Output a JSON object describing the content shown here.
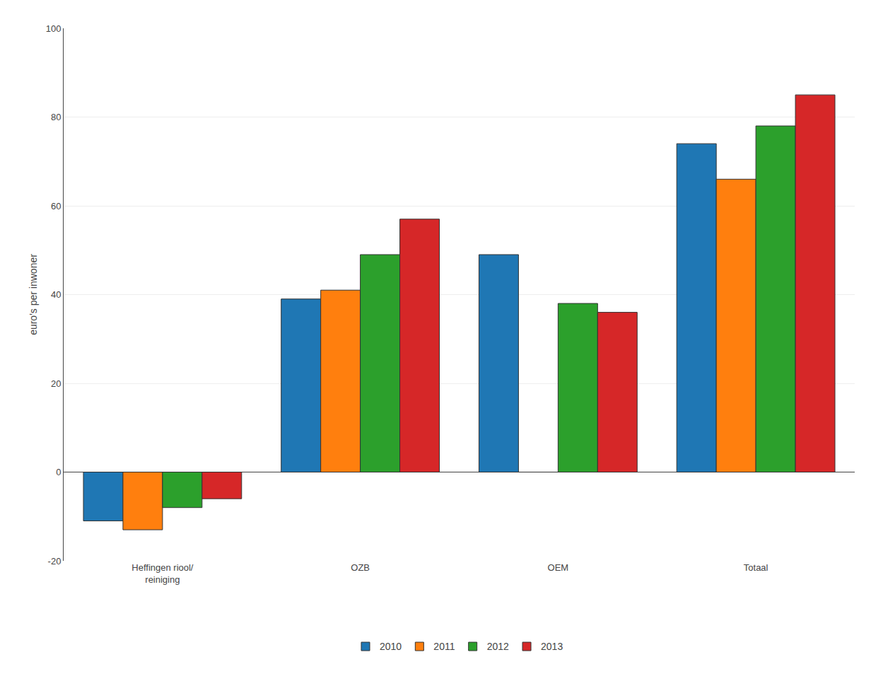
{
  "chart_data": {
    "type": "bar",
    "ylabel": "euro's per inwoner",
    "categories": [
      "Heffingen riool/\nreiniging",
      "OZB",
      "OEM",
      "Totaal"
    ],
    "series": [
      {
        "name": "2010",
        "values": [
          -11,
          39,
          49,
          74
        ]
      },
      {
        "name": "2011",
        "values": [
          -13,
          41,
          0,
          66
        ]
      },
      {
        "name": "2012",
        "values": [
          -8,
          49,
          38,
          78
        ]
      },
      {
        "name": "2013",
        "values": [
          -6,
          57,
          36,
          85
        ]
      }
    ],
    "ylim": [
      -20,
      100
    ],
    "yticks": [
      -20,
      0,
      20,
      40,
      60,
      80,
      100
    ],
    "grid": true,
    "legend": "bottom"
  }
}
